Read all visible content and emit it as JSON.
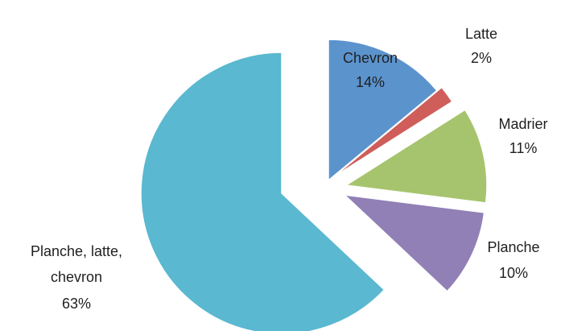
{
  "chart_data": {
    "type": "pie",
    "exploded": true,
    "slices": [
      {
        "label": "Chevron",
        "value": 14,
        "percent_label": "14%",
        "color": "#5B93CD"
      },
      {
        "label": "Latte",
        "value": 2,
        "percent_label": "2%",
        "color": "#CF5E5B"
      },
      {
        "label": "Madrier",
        "value": 11,
        "percent_label": "11%",
        "color": "#A6C46D"
      },
      {
        "label": "Planche",
        "value": 10,
        "percent_label": "10%",
        "color": "#9180B5"
      },
      {
        "label": "Planche, latte, chevron",
        "label_lines": [
          "Planche, latte,",
          "chevron"
        ],
        "value": 63,
        "percent_label": "63%",
        "color": "#5AB8D0"
      }
    ]
  }
}
